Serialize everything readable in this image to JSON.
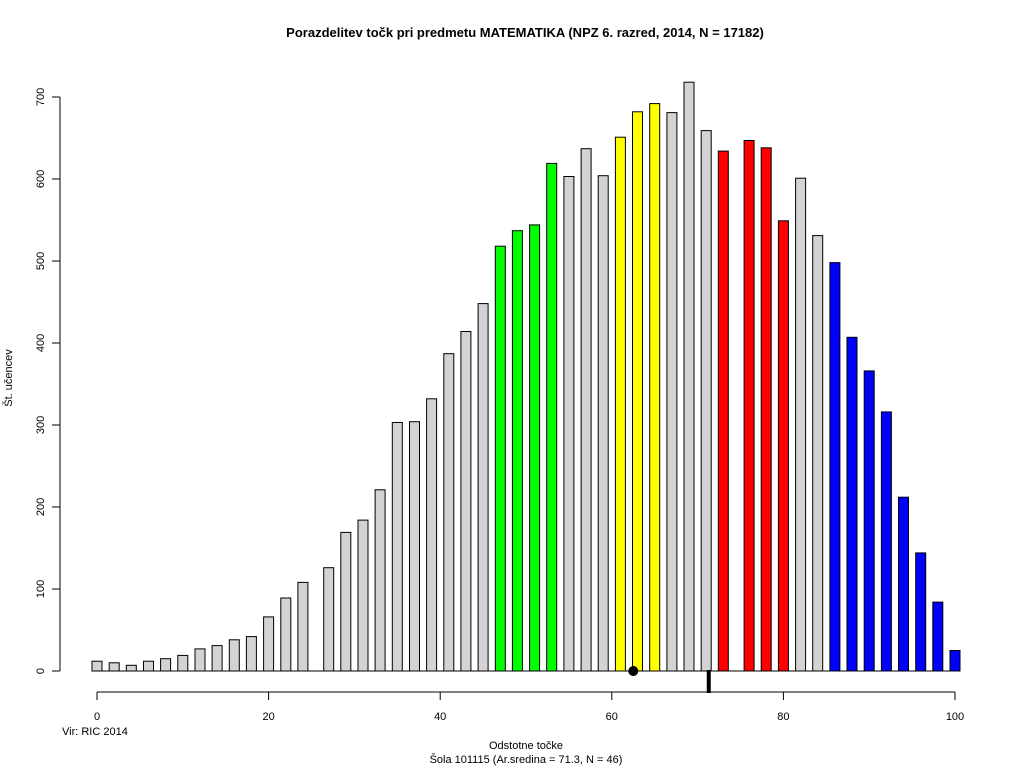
{
  "chart_data": {
    "type": "bar",
    "title": "Porazdelitev točk pri predmetu MATEMATIKA (NPZ 6. razred, 2014, N = 17182)",
    "xlabel": "Odstotne točke",
    "subtitle": "Šola 101115 (Ar.sredina = 71.3, N = 46)",
    "ylabel": "Št. učencev",
    "source": "Vir: RIC 2014",
    "xlim": [
      0,
      100
    ],
    "ylim": [
      0,
      700
    ],
    "x_ticks": [
      0,
      20,
      40,
      60,
      80,
      100
    ],
    "y_ticks": [
      0,
      100,
      200,
      300,
      400,
      500,
      600,
      700
    ],
    "grid": false,
    "bar_color_default": "#d3d3d3",
    "bars": [
      {
        "x": 0,
        "value": 12,
        "color": "#d3d3d3"
      },
      {
        "x": 2,
        "value": 10,
        "color": "#d3d3d3"
      },
      {
        "x": 4,
        "value": 7,
        "color": "#d3d3d3"
      },
      {
        "x": 6,
        "value": 12,
        "color": "#d3d3d3"
      },
      {
        "x": 8,
        "value": 15,
        "color": "#d3d3d3"
      },
      {
        "x": 10,
        "value": 19,
        "color": "#d3d3d3"
      },
      {
        "x": 12,
        "value": 27,
        "color": "#d3d3d3"
      },
      {
        "x": 14,
        "value": 31,
        "color": "#d3d3d3"
      },
      {
        "x": 16,
        "value": 38,
        "color": "#d3d3d3"
      },
      {
        "x": 18,
        "value": 42,
        "color": "#d3d3d3"
      },
      {
        "x": 20,
        "value": 66,
        "color": "#d3d3d3"
      },
      {
        "x": 22,
        "value": 89,
        "color": "#d3d3d3"
      },
      {
        "x": 24,
        "value": 108,
        "color": "#d3d3d3"
      },
      {
        "x": 26,
        "value": 0,
        "color": "#d3d3d3"
      },
      {
        "x": 27,
        "value": 126,
        "color": "#d3d3d3"
      },
      {
        "x": 29,
        "value": 169,
        "color": "#d3d3d3"
      },
      {
        "x": 31,
        "value": 184,
        "color": "#d3d3d3"
      },
      {
        "x": 33,
        "value": 221,
        "color": "#d3d3d3"
      },
      {
        "x": 35,
        "value": 303,
        "color": "#d3d3d3"
      },
      {
        "x": 37,
        "value": 304,
        "color": "#d3d3d3"
      },
      {
        "x": 39,
        "value": 332,
        "color": "#d3d3d3"
      },
      {
        "x": 41,
        "value": 387,
        "color": "#d3d3d3"
      },
      {
        "x": 43,
        "value": 414,
        "color": "#d3d3d3"
      },
      {
        "x": 45,
        "value": 448,
        "color": "#d3d3d3"
      },
      {
        "x": 47,
        "value": 518,
        "color": "#00ff00"
      },
      {
        "x": 49,
        "value": 537,
        "color": "#00ff00"
      },
      {
        "x": 51,
        "value": 544,
        "color": "#00ff00"
      },
      {
        "x": 53,
        "value": 619,
        "color": "#00ff00"
      },
      {
        "x": 55,
        "value": 603,
        "color": "#d3d3d3"
      },
      {
        "x": 57,
        "value": 637,
        "color": "#d3d3d3"
      },
      {
        "x": 59,
        "value": 604,
        "color": "#d3d3d3"
      },
      {
        "x": 61,
        "value": 651,
        "color": "#ffff00"
      },
      {
        "x": 63,
        "value": 682,
        "color": "#ffff00"
      },
      {
        "x": 65,
        "value": 692,
        "color": "#ffff00"
      },
      {
        "x": 67,
        "value": 681,
        "color": "#d3d3d3"
      },
      {
        "x": 69,
        "value": 718,
        "color": "#d3d3d3"
      },
      {
        "x": 71,
        "value": 659,
        "color": "#d3d3d3"
      },
      {
        "x": 73,
        "value": 634,
        "color": "#ff0000"
      },
      {
        "x": 76,
        "value": 647,
        "color": "#ff0000"
      },
      {
        "x": 78,
        "value": 638,
        "color": "#ff0000"
      },
      {
        "x": 80,
        "value": 549,
        "color": "#ff0000"
      },
      {
        "x": 82,
        "value": 601,
        "color": "#d3d3d3"
      },
      {
        "x": 84,
        "value": 531,
        "color": "#d3d3d3"
      },
      {
        "x": 86,
        "value": 498,
        "color": "#0000ff"
      },
      {
        "x": 88,
        "value": 407,
        "color": "#0000ff"
      },
      {
        "x": 90,
        "value": 366,
        "color": "#0000ff"
      },
      {
        "x": 92,
        "value": 316,
        "color": "#0000ff"
      },
      {
        "x": 94,
        "value": 212,
        "color": "#0000ff"
      },
      {
        "x": 96,
        "value": 144,
        "color": "#0000ff"
      },
      {
        "x": 98,
        "value": 84,
        "color": "#0000ff"
      },
      {
        "x": 100,
        "value": 25,
        "color": "#0000ff"
      }
    ],
    "national_mean_marker": {
      "x": 62.5,
      "shape": "filled-circle",
      "color": "#000000"
    },
    "school_mean_marker": {
      "x": 71.3,
      "shape": "thick-vertical-bar",
      "color": "#000000"
    }
  }
}
